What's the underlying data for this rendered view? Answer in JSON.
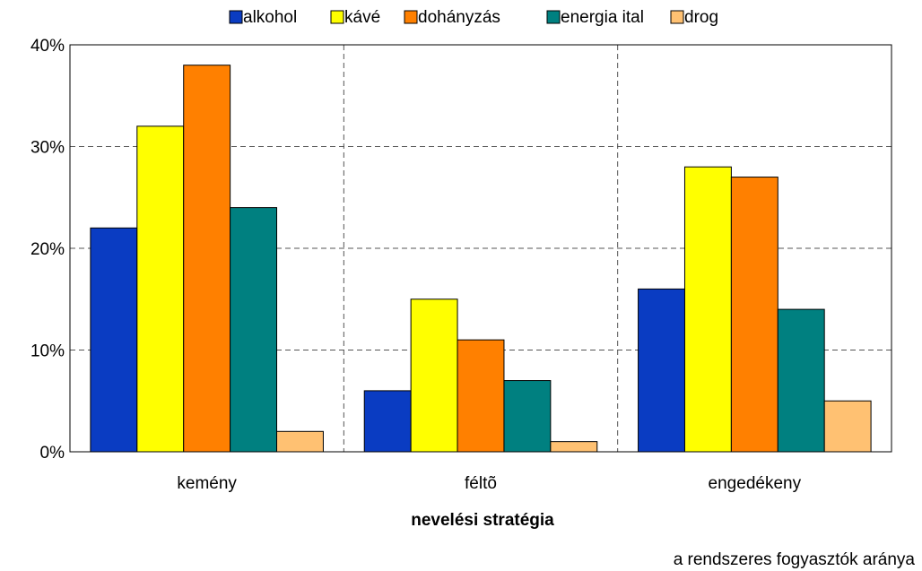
{
  "chart_data": {
    "type": "bar",
    "x_label": "nevelési stratégia",
    "annotation": "a rendszeres fogyasztók aránya",
    "categories": [
      "kemény",
      "féltõ",
      "engedékeny"
    ],
    "series": [
      {
        "name": "alkohol",
        "color": "#0a3cc2",
        "values": [
          22,
          6,
          16
        ]
      },
      {
        "name": "kávé",
        "color": "#ffff00",
        "values": [
          32,
          15,
          28
        ]
      },
      {
        "name": "dohányzás",
        "color": "#ff8000",
        "values": [
          38,
          11,
          27
        ]
      },
      {
        "name": "energia ital",
        "color": "#008080",
        "values": [
          24,
          7,
          14
        ]
      },
      {
        "name": "drog",
        "color": "#ffc172",
        "values": [
          2,
          1,
          5
        ]
      }
    ],
    "ylim": [
      0,
      40
    ],
    "yticks": [
      {
        "value": 0,
        "label": "0%"
      },
      {
        "value": 10,
        "label": "10%"
      },
      {
        "value": 20,
        "label": "20%"
      },
      {
        "value": 30,
        "label": "30%"
      },
      {
        "value": 40,
        "label": "40%"
      }
    ],
    "grid": true
  }
}
